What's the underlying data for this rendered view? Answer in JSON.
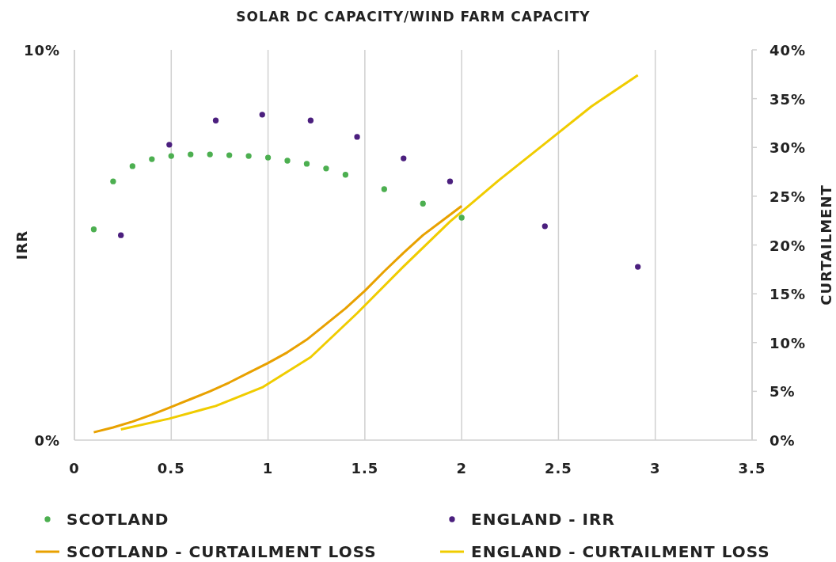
{
  "chart_data": {
    "type": "scatter",
    "title": "SOLAR DC CAPACITY/WIND FARM CAPACITY",
    "ylabel": "IRR",
    "y2label": "CURTAILMENT",
    "xlim": [
      0,
      3.5
    ],
    "xticks": [
      0,
      0.5,
      1,
      1.5,
      2,
      2.5,
      3,
      3.5
    ],
    "ylim": [
      0,
      10
    ],
    "yticks": [
      {
        "value": 0,
        "label": "0%"
      },
      {
        "value": 10,
        "label": "10%"
      }
    ],
    "y2lim": [
      0,
      40
    ],
    "y2ticks": [
      {
        "value": 0,
        "label": "0%"
      },
      {
        "value": 5,
        "label": "5%"
      },
      {
        "value": 10,
        "label": "10%"
      },
      {
        "value": 15,
        "label": "15%"
      },
      {
        "value": 20,
        "label": "20%"
      },
      {
        "value": 25,
        "label": "25%"
      },
      {
        "value": 30,
        "label": "30%"
      },
      {
        "value": 35,
        "label": "35%"
      },
      {
        "value": 40,
        "label": "40%"
      }
    ],
    "grid": "x",
    "legend": "bottom",
    "series": [
      {
        "name": "SCOTLAND",
        "marker": "circle",
        "color": "#4caf50",
        "x": [
          0.1,
          0.2,
          0.3,
          0.4,
          0.5,
          0.6,
          0.7,
          0.8,
          0.9,
          1.0,
          1.1,
          1.2,
          1.3,
          1.4,
          1.6,
          1.8,
          2.0
        ],
        "values": [
          5.4,
          6.63,
          7.02,
          7.2,
          7.28,
          7.32,
          7.32,
          7.3,
          7.28,
          7.24,
          7.16,
          7.08,
          6.96,
          6.8,
          6.43,
          6.06,
          5.7
        ]
      },
      {
        "name": "ENGLAND - IRR",
        "marker": "circle",
        "color": "#4b1f7e",
        "x": [
          0.24,
          0.49,
          0.73,
          0.97,
          1.22,
          1.46,
          1.7,
          1.94,
          2.43,
          2.91
        ],
        "values": [
          5.25,
          7.57,
          8.19,
          8.34,
          8.19,
          7.77,
          7.22,
          6.63,
          5.48,
          4.44
        ]
      },
      {
        "name": "SCOTLAND - CURTAILMENT LOSS",
        "type": "line",
        "axis": "y2",
        "color": "#e8a100",
        "x": [
          0.1,
          0.2,
          0.3,
          0.4,
          0.5,
          0.6,
          0.7,
          0.8,
          0.9,
          1.0,
          1.1,
          1.2,
          1.3,
          1.4,
          1.5,
          1.6,
          1.7,
          1.8,
          1.9,
          2.0
        ],
        "values": [
          0.8,
          1.3,
          1.9,
          2.6,
          3.4,
          4.2,
          5.0,
          5.9,
          6.9,
          7.9,
          9.0,
          10.3,
          11.9,
          13.5,
          15.3,
          17.3,
          19.2,
          21.0,
          22.5,
          24.0
        ]
      },
      {
        "name": "ENGLAND - CURTAILMENT LOSS",
        "type": "line",
        "axis": "y2",
        "color": "#f0cc00",
        "x": [
          0.24,
          0.49,
          0.73,
          0.97,
          1.22,
          1.46,
          1.7,
          1.94,
          2.19,
          2.43,
          2.67,
          2.91
        ],
        "values": [
          1.1,
          2.2,
          3.5,
          5.4,
          8.5,
          13.0,
          17.8,
          22.4,
          26.6,
          30.4,
          34.2,
          37.4
        ]
      }
    ]
  }
}
